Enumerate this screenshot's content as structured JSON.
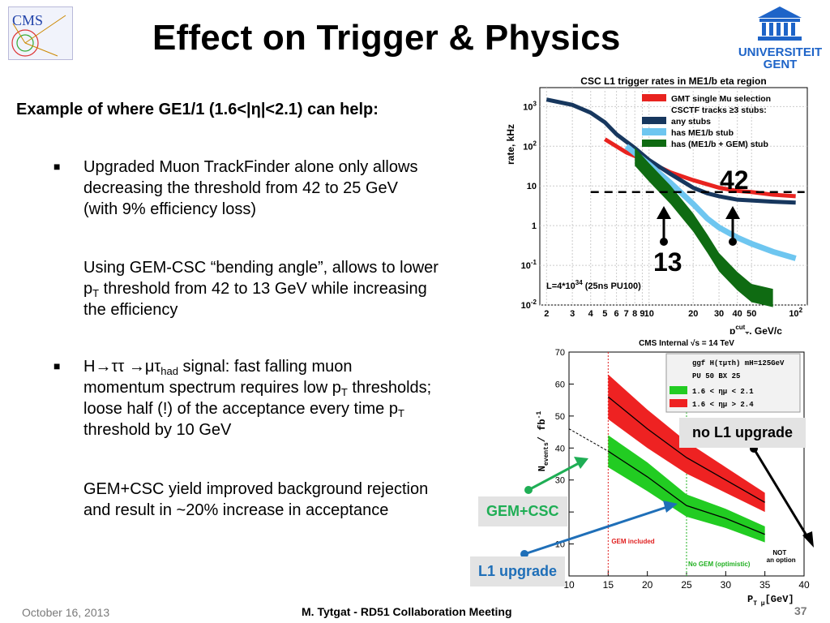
{
  "slide": {
    "title": "Effect on Trigger & Physics",
    "subtitle": "Example of where GE1/1 (1.6<|η|<2.1) can help:",
    "logos": {
      "left": "CMS",
      "right_line1": "UNIVERSITEIT",
      "right_line2": "GENT"
    },
    "bullets": {
      "b1_lines": [
        "Upgraded  Muon TrackFinder alone only allows",
        "decreasing the threshold from 42 to 25 GeV",
        "(with 9% efficiency loss)"
      ],
      "p2_line1": "Using GEM-CSC “bending angle”, allows to lower",
      "p2_pt": "p",
      "p2_T": "T",
      "p2_line2_rest": " threshold from 42 to 13 GeV while increasing",
      "p2_line3": "the efficiency",
      "b3_H": "H",
      "b3_arrow1": "→",
      "b3_tautau": "ττ ",
      "b3_arrow2": "→",
      "b3_mutau": "μτ",
      "b3_had": "had",
      "b3_rest1": " signal: fast falling muon",
      "b3_line2a": "momentum spectrum requires low p",
      "b3_line2b": " thresholds;",
      "b3_line3a": "loose half (!) of the acceptance every time p",
      "b3_line4": "threshold by 10 GeV",
      "p4_line1": "GEM+CSC yield improved background rejection",
      "p4_line2": "and result in ~20% increase in acceptance",
      "T": "T"
    },
    "callouts": {
      "c42": "42",
      "c13": "13",
      "no_l1": "no L1 upgrade",
      "gemcsc": "GEM+CSC",
      "l1up": "L1 upgrade"
    },
    "footer": {
      "date": "October 16, 2013",
      "center": "M. Tytgat - RD51 Collaboration Meeting",
      "page": "37"
    },
    "colors": {
      "red": "#e8231f",
      "darkblue": "#17375e",
      "lightblue": "#6ec6f0",
      "green": "#0f6b12",
      "arrow_green": "#1fae55",
      "arrow_blue": "#1f6fb8"
    }
  },
  "chart_data": [
    {
      "type": "line",
      "title": "CSC L1 trigger rates in ME1/b eta region",
      "ylabel": "rate, kHz",
      "xlabel_main": "p",
      "xlabel_sup": "cut",
      "xlabel_sub": "T",
      "xlabel_rest": ", GeV/c",
      "log_x": true,
      "log_y": true,
      "xlim": [
        1.8,
        120
      ],
      "ylim": [
        0.01,
        3000
      ],
      "xticks": [
        "2",
        "3",
        "4",
        "5",
        "6",
        "7",
        "8",
        "9",
        "10",
        "20",
        "30",
        "40",
        "50"
      ],
      "xtick_vals": [
        2,
        3,
        4,
        5,
        6,
        7,
        8,
        9,
        10,
        20,
        30,
        40,
        50
      ],
      "x100_label": "10",
      "x100_exp": "2",
      "yticks": [
        {
          "v": 0.01,
          "b": "10",
          "e": "-2"
        },
        {
          "v": 0.1,
          "b": "10",
          "e": "-1"
        },
        {
          "v": 1,
          "b": "1",
          "e": ""
        },
        {
          "v": 10,
          "b": "10",
          "e": ""
        },
        {
          "v": 100,
          "b": "10",
          "e": "2"
        },
        {
          "v": 1000,
          "b": "10",
          "e": "3"
        }
      ],
      "legend": [
        {
          "name": "GMT single Mu selection",
          "color": "#e8231f"
        },
        {
          "name": "CSCTF tracks ≥3 stubs:",
          "color": ""
        },
        {
          "name": "any stubs",
          "color": "#17375e"
        },
        {
          "name": "has ME1/b stub",
          "color": "#6ec6f0"
        },
        {
          "name": "has (ME1/b + GEM) stub",
          "color": "#0f6b12"
        }
      ],
      "annotation": "L=4*10",
      "annotation_exp": "34",
      "annotation_rest": " (25ns PU100)",
      "threshold_rate": 7,
      "series": [
        {
          "name": "GMT single Mu selection",
          "color": "#e8231f",
          "x": [
            5,
            7,
            10,
            14,
            20,
            25,
            30,
            40,
            50,
            70,
            100
          ],
          "y": [
            150,
            70,
            40,
            22,
            14,
            11,
            9,
            7.5,
            7,
            6,
            5.5
          ]
        },
        {
          "name": "any stubs",
          "color": "#17375e",
          "x": [
            2,
            3,
            4,
            5,
            6,
            8,
            10,
            14,
            20,
            25,
            30,
            40,
            50,
            70,
            100
          ],
          "y": [
            1500,
            1100,
            700,
            400,
            200,
            90,
            45,
            20,
            9,
            6.5,
            5.5,
            4.5,
            4.3,
            4,
            3.8
          ]
        },
        {
          "name": "has ME1/b stub",
          "color": "#6ec6f0",
          "x": [
            7,
            10,
            14,
            20,
            25,
            30,
            40,
            50,
            70,
            100
          ],
          "y": [
            100,
            35,
            12,
            3.5,
            1.5,
            0.9,
            0.5,
            0.35,
            0.22,
            0.15
          ]
        },
        {
          "name": "has (ME1/b + GEM) stub",
          "color": "#0f6b12",
          "x": [
            8,
            10,
            14,
            20,
            25,
            30,
            40,
            50,
            70
          ],
          "y": [
            55,
            22,
            6,
            1.2,
            0.35,
            0.12,
            0.04,
            0.02,
            0.015
          ]
        }
      ]
    },
    {
      "type": "line",
      "title": "CMS Internal √s = 14 TeV",
      "ylabel": "N",
      "ylabel_sub": "events",
      "ylabel_rest": "/ fb",
      "ylabel_sup": "-1",
      "xlabel": "P",
      "xlabel_sub": "T μ",
      "xlabel_rest": "[GeV]",
      "xlim": [
        10,
        40
      ],
      "ylim": [
        0,
        70
      ],
      "xticks": [
        10,
        15,
        20,
        25,
        30,
        35,
        40
      ],
      "yticks": [
        0,
        10,
        20,
        30,
        40,
        50,
        60,
        70
      ],
      "legend_header": "ggf H(τμτh) mH=125GeV",
      "legend_pu": "PU 50 BX 25",
      "legend": [
        {
          "name": "1.6 < ημ < 2.1",
          "color": "#22cc22"
        },
        {
          "name": "1.6 < ημ > 2.4",
          "color": "#ee2222"
        }
      ],
      "annotations": {
        "gem": "GEM included",
        "nogem": "No GEM (optimistic)",
        "not1": "NOT",
        "not2": "an option"
      },
      "series": [
        {
          "name": "red band",
          "color": "#ee2222",
          "x": [
            15,
            20,
            25,
            30,
            35
          ],
          "y": [
            56,
            46,
            37,
            30,
            23
          ],
          "err": [
            7,
            6,
            5,
            4,
            3
          ]
        },
        {
          "name": "green band",
          "color": "#22cc22",
          "x": [
            15,
            20,
            25,
            30,
            35
          ],
          "y": [
            39,
            31,
            22,
            18,
            13
          ],
          "err": [
            5,
            4.5,
            3.5,
            3,
            2.5
          ]
        }
      ]
    }
  ]
}
